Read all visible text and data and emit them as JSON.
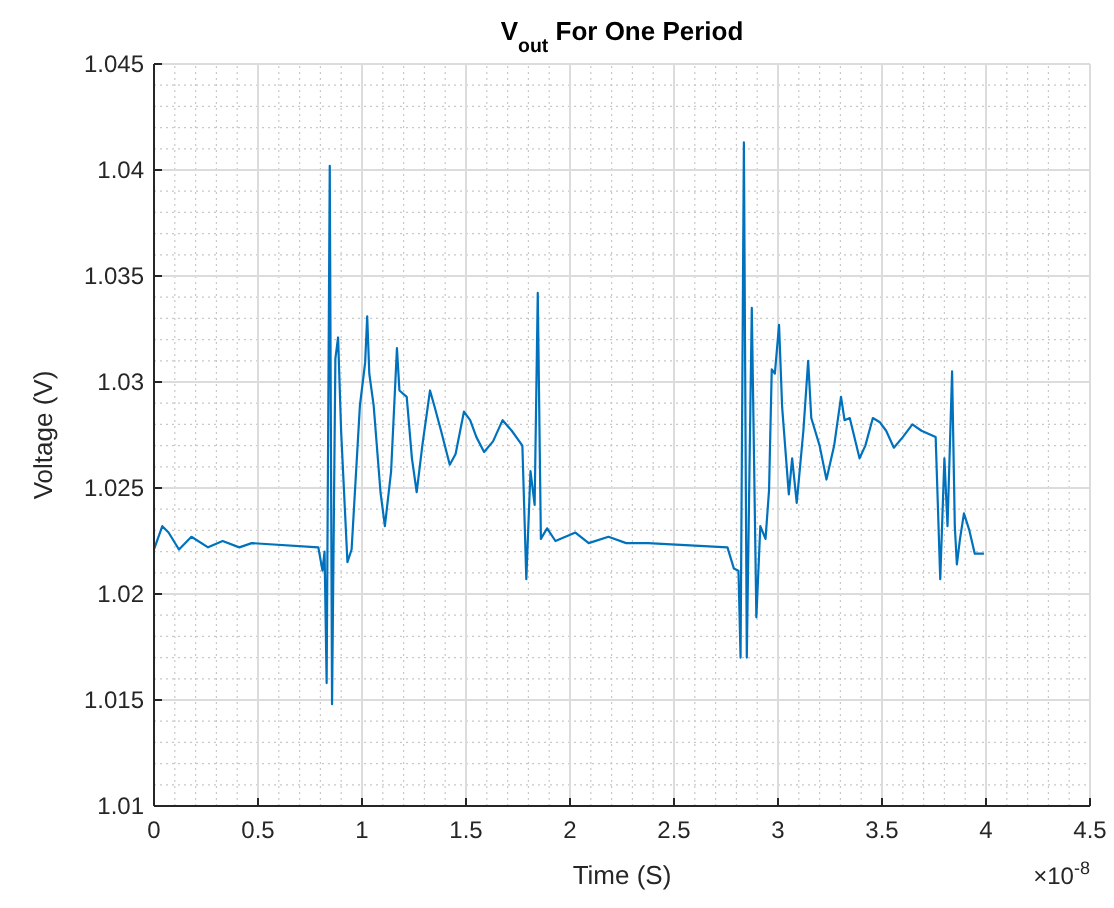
{
  "chart_data": {
    "type": "line",
    "title": "V$_{out}$ For One Period",
    "xlabel": "Time (S)",
    "ylabel": "Voltage (V)",
    "annotations": [
      "×10$^{-8}$"
    ],
    "xlim": [
      0,
      4.5
    ],
    "xticks": [
      0,
      0.5,
      1,
      1.5,
      2,
      2.5,
      3,
      3.5,
      4,
      4.5
    ],
    "ylim": [
      1.01,
      1.045
    ],
    "yticks": [
      1.01,
      1.015,
      1.02,
      1.025,
      1.03,
      1.035,
      1.04,
      1.045
    ],
    "grid": true,
    "line_style": "solid",
    "marker": "none",
    "series": [
      {
        "color": "#0072bd",
        "x": [
          0,
          0.04,
          0.07,
          0.12,
          0.18,
          0.26,
          0.33,
          0.41,
          0.47,
          0.79,
          0.81,
          0.82,
          0.83,
          0.845,
          0.856,
          0.872,
          0.885,
          0.9,
          0.93,
          0.95,
          0.99,
          1.015,
          1.025,
          1.035,
          1.056,
          1.089,
          1.11,
          1.14,
          1.168,
          1.18,
          1.215,
          1.24,
          1.263,
          1.29,
          1.327,
          1.35,
          1.38,
          1.422,
          1.45,
          1.49,
          1.52,
          1.55,
          1.587,
          1.63,
          1.676,
          1.72,
          1.771,
          1.79,
          1.81,
          1.83,
          1.845,
          1.86,
          1.89,
          1.93,
          2.026,
          2.09,
          2.185,
          2.27,
          2.375,
          2.757,
          2.788,
          2.81,
          2.82,
          2.836,
          2.85,
          2.874,
          2.896,
          2.915,
          2.94,
          2.957,
          2.97,
          2.985,
          3.005,
          3.02,
          3.052,
          3.068,
          3.09,
          3.122,
          3.145,
          3.16,
          3.2,
          3.233,
          3.27,
          3.303,
          3.32,
          3.345,
          3.392,
          3.42,
          3.456,
          3.49,
          3.52,
          3.557,
          3.6,
          3.646,
          3.69,
          3.758,
          3.78,
          3.8,
          3.815,
          3.837,
          3.85,
          3.86,
          3.875,
          3.894,
          3.92,
          3.946,
          3.99
        ],
        "values": [
          1.0221,
          1.0232,
          1.0229,
          1.0221,
          1.0227,
          1.0222,
          1.0225,
          1.0222,
          1.0224,
          1.0222,
          1.0211,
          1.022,
          1.0158,
          1.0402,
          1.0148,
          1.0311,
          1.0321,
          1.0276,
          1.0215,
          1.0221,
          1.0289,
          1.0309,
          1.0331,
          1.0304,
          1.0289,
          1.0248,
          1.0232,
          1.0258,
          1.0316,
          1.0296,
          1.0293,
          1.0264,
          1.0248,
          1.027,
          1.0296,
          1.0288,
          1.0277,
          1.0261,
          1.0266,
          1.0286,
          1.0282,
          1.0274,
          1.0267,
          1.0272,
          1.0282,
          1.0277,
          1.027,
          1.0207,
          1.0258,
          1.0242,
          1.0342,
          1.0226,
          1.0231,
          1.0225,
          1.0229,
          1.0224,
          1.0227,
          1.0224,
          1.0224,
          1.0222,
          1.0212,
          1.0211,
          1.017,
          1.0413,
          1.017,
          1.0335,
          1.0189,
          1.0232,
          1.0226,
          1.0249,
          1.0306,
          1.0304,
          1.0327,
          1.0288,
          1.0247,
          1.0264,
          1.0243,
          1.0277,
          1.031,
          1.0283,
          1.027,
          1.0254,
          1.027,
          1.0293,
          1.0282,
          1.0283,
          1.0264,
          1.027,
          1.0283,
          1.0281,
          1.0277,
          1.0269,
          1.0274,
          1.028,
          1.0277,
          1.0274,
          1.0207,
          1.0264,
          1.0232,
          1.0305,
          1.0232,
          1.0214,
          1.0226,
          1.0238,
          1.023,
          1.0219,
          1.0219
        ]
      }
    ]
  }
}
